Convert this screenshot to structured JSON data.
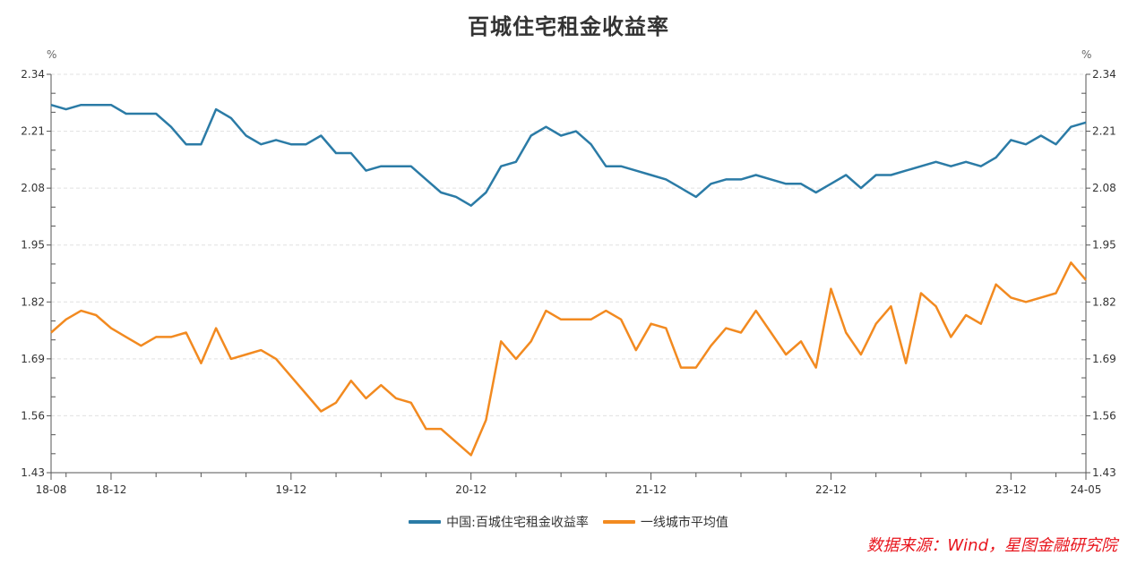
{
  "title": "百城住宅租金收益率",
  "unit_left": "%",
  "unit_right": "%",
  "legend": [
    {
      "label": "中国:百城住宅租金收益率",
      "color": "#2b7ba6"
    },
    {
      "label": "一线城市平均值",
      "color": "#f28a20"
    }
  ],
  "source": "数据来源：Wind，星图金融研究院",
  "chart_data": {
    "type": "line",
    "title": "百城住宅租金收益率",
    "xlabel": "",
    "ylabel": "%",
    "ylim": [
      1.43,
      2.34
    ],
    "yticks": [
      1.43,
      1.56,
      1.69,
      1.82,
      1.95,
      2.08,
      2.21,
      2.34
    ],
    "xtick_labels": [
      "18-08",
      "18-12",
      "19-12",
      "20-12",
      "21-12",
      "22-12",
      "23-12",
      "24-05"
    ],
    "grid": true,
    "legend_position": "bottom",
    "x_start": "2018-08",
    "x_end": "2024-05",
    "frequency": "monthly",
    "x": [
      "18-08",
      "18-09",
      "18-10",
      "18-11",
      "18-12",
      "19-01",
      "19-02",
      "19-03",
      "19-04",
      "19-05",
      "19-06",
      "19-07",
      "19-08",
      "19-09",
      "19-10",
      "19-11",
      "19-12",
      "20-01",
      "20-02",
      "20-03",
      "20-04",
      "20-05",
      "20-06",
      "20-07",
      "20-08",
      "20-09",
      "20-10",
      "20-11",
      "20-12",
      "21-01",
      "21-02",
      "21-03",
      "21-04",
      "21-05",
      "21-06",
      "21-07",
      "21-08",
      "21-09",
      "21-10",
      "21-11",
      "21-12",
      "22-01",
      "22-02",
      "22-03",
      "22-04",
      "22-05",
      "22-06",
      "22-07",
      "22-08",
      "22-09",
      "22-10",
      "22-11",
      "22-12",
      "23-01",
      "23-02",
      "23-03",
      "23-04",
      "23-05",
      "23-06",
      "23-07",
      "23-08",
      "23-09",
      "23-10",
      "23-11",
      "23-12",
      "24-01",
      "24-02",
      "24-03",
      "24-04",
      "24-05"
    ],
    "series": [
      {
        "name": "中国:百城住宅租金收益率",
        "color": "#2b7ba6",
        "values": [
          2.27,
          2.26,
          2.27,
          2.27,
          2.27,
          2.25,
          2.25,
          2.25,
          2.22,
          2.18,
          2.18,
          2.26,
          2.24,
          2.2,
          2.18,
          2.19,
          2.18,
          2.18,
          2.2,
          2.16,
          2.16,
          2.12,
          2.13,
          2.13,
          2.13,
          2.1,
          2.07,
          2.06,
          2.04,
          2.07,
          2.13,
          2.14,
          2.2,
          2.22,
          2.2,
          2.21,
          2.18,
          2.13,
          2.13,
          2.12,
          2.11,
          2.1,
          2.08,
          2.06,
          2.09,
          2.1,
          2.1,
          2.11,
          2.1,
          2.09,
          2.09,
          2.07,
          2.09,
          2.11,
          2.08,
          2.11,
          2.11,
          2.12,
          2.13,
          2.14,
          2.13,
          2.14,
          2.13,
          2.15,
          2.19,
          2.18,
          2.2,
          2.18,
          2.22,
          2.23
        ]
      },
      {
        "name": "一线城市平均值",
        "color": "#f28a20",
        "values": [
          1.75,
          1.78,
          1.8,
          1.79,
          1.76,
          1.74,
          1.72,
          1.74,
          1.74,
          1.75,
          1.68,
          1.76,
          1.69,
          1.7,
          1.71,
          1.69,
          1.65,
          1.61,
          1.57,
          1.59,
          1.64,
          1.6,
          1.63,
          1.6,
          1.59,
          1.53,
          1.53,
          1.5,
          1.47,
          1.55,
          1.73,
          1.69,
          1.73,
          1.8,
          1.78,
          1.78,
          1.78,
          1.8,
          1.78,
          1.71,
          1.77,
          1.76,
          1.67,
          1.67,
          1.72,
          1.76,
          1.75,
          1.8,
          1.75,
          1.7,
          1.73,
          1.67,
          1.85,
          1.75,
          1.7,
          1.77,
          1.81,
          1.68,
          1.84,
          1.81,
          1.74,
          1.79,
          1.77,
          1.86,
          1.83,
          1.82,
          1.83,
          1.84,
          1.91,
          1.87
        ]
      }
    ]
  }
}
